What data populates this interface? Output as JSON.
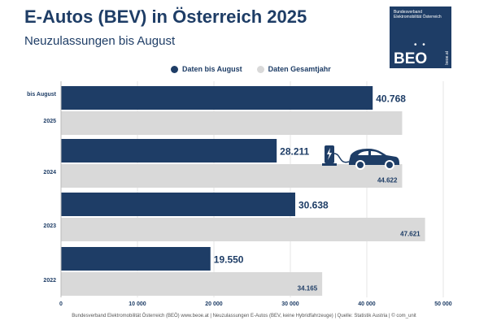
{
  "header": {
    "title": "E-Autos (BEV) in Österreich 2025",
    "subtitle": "Neuzulassungen bis August"
  },
  "logo": {
    "small_text": "Bundesverband Elektromobilität Österreich",
    "name": "BEO",
    "dots": "• •",
    "url": "beoe.at"
  },
  "legend": {
    "items": [
      {
        "label": "Daten bis August",
        "color": "#1e3d66"
      },
      {
        "label": "Daten Gesamtjahr",
        "color": "#d9d9d9"
      }
    ]
  },
  "chart_data": {
    "type": "bar",
    "orientation": "horizontal",
    "categories": [
      "2025",
      "2024",
      "2023",
      "2022"
    ],
    "category_prefix": "bis August",
    "series": [
      {
        "name": "Daten bis August",
        "color": "#1e3d66",
        "values": [
          40768,
          28211,
          30638,
          19550
        ],
        "labels": [
          "40.768",
          "28.211",
          "30.638",
          "19.550"
        ]
      },
      {
        "name": "Daten Gesamtjahr",
        "color": "#d9d9d9",
        "values": [
          null,
          44622,
          47621,
          34165
        ],
        "labels": [
          "",
          "44.622",
          "47.621",
          "34.165"
        ]
      }
    ],
    "xlim": [
      0,
      50000
    ],
    "xticks": [
      0,
      10000,
      20000,
      30000,
      40000,
      50000
    ],
    "xtick_labels": [
      "0",
      "10 000",
      "20 000",
      "30 000",
      "40 000",
      "50 000"
    ],
    "grid": true,
    "legend_position": "top"
  },
  "footer": {
    "text": "Bundesverband Elektromobilität Österreich (BEÖ) www.beoe.at | Neuzulassungen E-Autos (BEV, keine Hybridfahrzeuge) | Quelle: Statistik Austria | © com_unit"
  }
}
